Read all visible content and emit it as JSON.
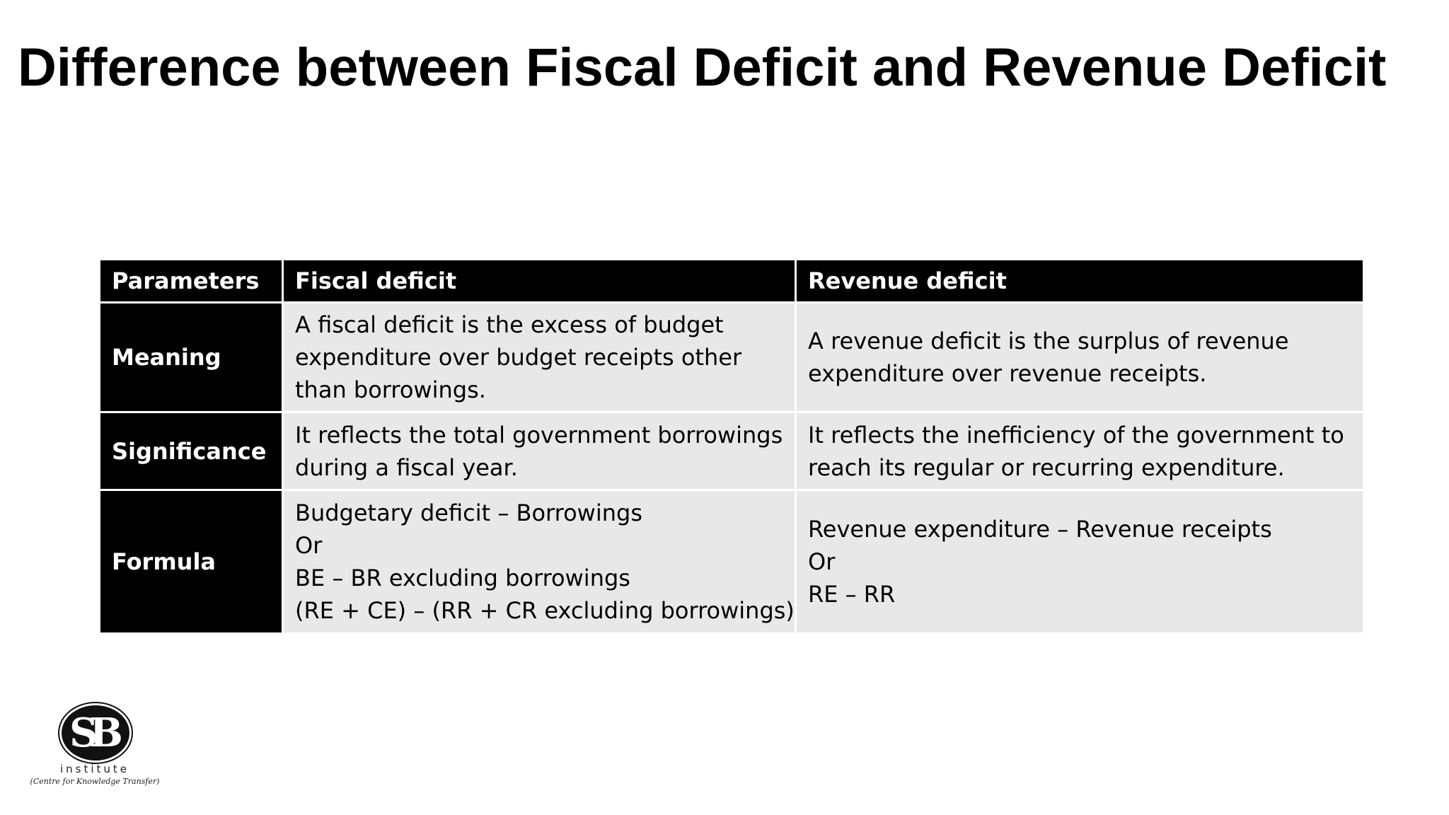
{
  "slide": {
    "title": "Difference between Fiscal Deficit and Revenue Deficit"
  },
  "table": {
    "headers": [
      "Parameters",
      "Fiscal deficit",
      "Revenue deficit"
    ],
    "rows": [
      {
        "parameter": "Meaning",
        "fiscal": [
          "A fiscal deficit is the excess of budget",
          "expenditure over budget receipts other",
          "than borrowings."
        ],
        "revenue": [
          "A revenue deficit is the surplus of revenue",
          "expenditure over revenue receipts."
        ]
      },
      {
        "parameter": "Significance",
        "fiscal": [
          "It reflects the total government borrowings",
          "during a fiscal year."
        ],
        "revenue": [
          "It reflects the inefficiency of the government to",
          "reach its regular or recurring expenditure."
        ]
      },
      {
        "parameter": "Formula",
        "fiscal": [
          "Budgetary deficit – Borrowings",
          "Or",
          "BE – BR excluding borrowings",
          "(RE + CE) – (RR + CR excluding borrowings)"
        ],
        "revenue": [
          "Revenue expenditure – Revenue receipts",
          "Or",
          "RE – RR"
        ]
      }
    ]
  },
  "logo": {
    "mark": "SB",
    "word": "institute",
    "tagline": "(Centre for Knowledge Transfer)"
  }
}
